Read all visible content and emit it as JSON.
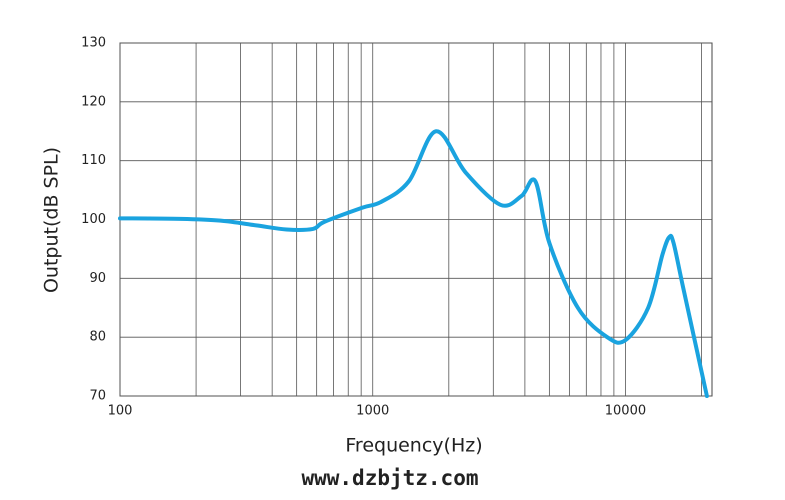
{
  "chart_data": {
    "type": "line",
    "x_label": "Frequency(Hz)",
    "y_label": "Output(dB SPL)",
    "annotation": "www.dzbjtz.com",
    "x": [
      100,
      174,
      250,
      346,
      456,
      580,
      643,
      908,
      1080,
      1390,
      1780,
      2330,
      3200,
      3880,
      4400,
      5000,
      6480,
      8470,
      10000,
      12300,
      14000,
      14900,
      15500,
      17000,
      21000
    ],
    "values": [
      100.2,
      100.1,
      99.8,
      99,
      98.3,
      98.4,
      99.6,
      102,
      103,
      106.5,
      115,
      108,
      102.5,
      104,
      106.5,
      96,
      85,
      80,
      79.5,
      85,
      94,
      97,
      96,
      88,
      70
    ],
    "color": "#1aa3df",
    "log_x": true,
    "grid": true,
    "xlim": [
      100,
      22000
    ],
    "xticks": [
      100,
      1000,
      10000
    ],
    "ylim": [
      70,
      130
    ],
    "yticks": [
      70,
      80,
      90,
      100,
      110,
      120,
      130
    ]
  }
}
